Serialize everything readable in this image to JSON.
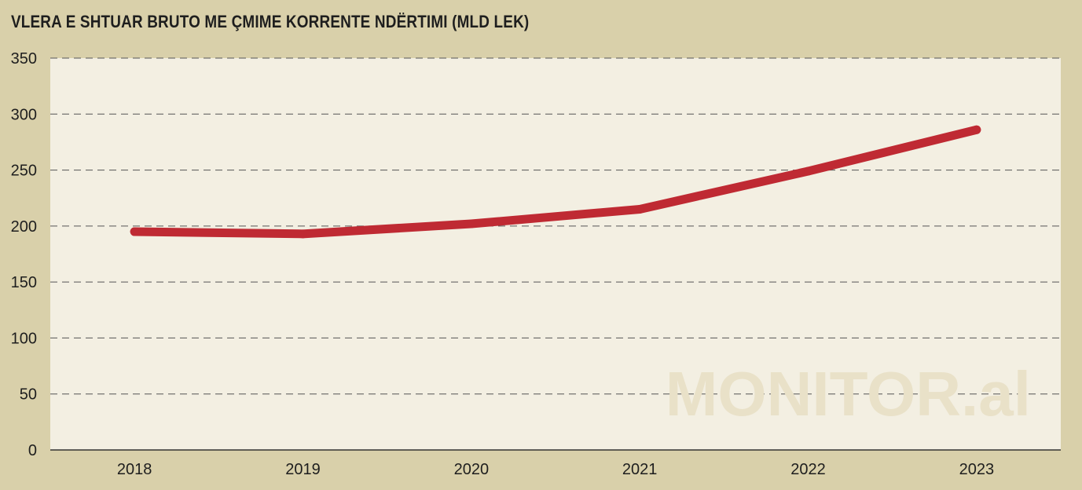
{
  "chart_data": {
    "type": "line",
    "title": "VLERA E SHTUAR BRUTO  ME ÇMIME KORRENTE NDËRTIMI (MLD LEK)",
    "categories": [
      "2018",
      "2019",
      "2020",
      "2021",
      "2022",
      "2023"
    ],
    "series": [
      {
        "values": [
          195,
          193,
          202,
          215,
          249,
          286
        ]
      }
    ],
    "ylim": [
      0,
      350
    ],
    "yticks": [
      "0",
      "50",
      "100",
      "150",
      "200",
      "250",
      "300",
      "350"
    ],
    "grid": true,
    "legend": "none"
  },
  "watermark": "MONITOR.al",
  "colors": {
    "background": "#d9d0aa",
    "plot_area": "#f3efe2",
    "line": "#bf2a33",
    "grid": "#555555",
    "watermark": "#e9e1c8"
  }
}
